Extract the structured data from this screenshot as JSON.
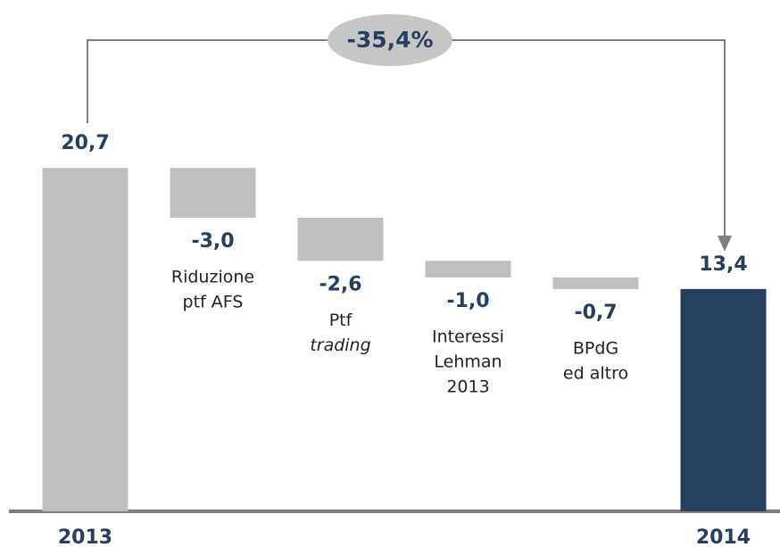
{
  "chart_data": {
    "type": "waterfall",
    "categories": [
      "2013",
      [
        "Riduzione",
        "ptf AFS"
      ],
      [
        "Ptf",
        "trading"
      ],
      [
        "Interessi",
        "Lehman",
        "2013"
      ],
      [
        "BPdG",
        "ed altro"
      ],
      "2014"
    ],
    "values": [
      20.7,
      -3.0,
      -2.6,
      -1.0,
      -0.7,
      13.4
    ],
    "value_labels": [
      "20,7",
      "-3,0",
      "-2,6",
      "-1,0",
      "-0,7",
      "13,4"
    ],
    "colors": [
      "#bfbfbf",
      "#bfbfbf",
      "#bfbfbf",
      "#bfbfbf",
      "#bfbfbf",
      "#263f5e"
    ],
    "ylim": [
      0,
      22
    ],
    "annotation": "-35,4%"
  }
}
